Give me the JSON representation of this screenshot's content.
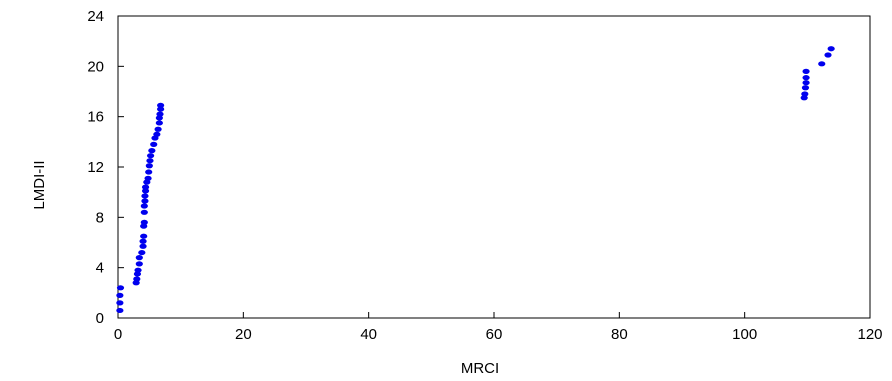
{
  "chart_data": {
    "type": "scatter",
    "title": "",
    "xlabel": "MRCI",
    "ylabel": "LMDI-II",
    "xlim": [
      0,
      120
    ],
    "ylim": [
      0,
      24
    ],
    "x_ticks": [
      0,
      20,
      40,
      60,
      80,
      100,
      120
    ],
    "y_ticks": [
      0,
      4,
      8,
      12,
      16,
      20,
      24
    ],
    "grid": false,
    "marker_color": "#0000ee",
    "points": [
      {
        "x": 0.3,
        "y": 0.6
      },
      {
        "x": 0.3,
        "y": 1.2
      },
      {
        "x": 0.3,
        "y": 1.8
      },
      {
        "x": 0.4,
        "y": 2.4
      },
      {
        "x": 2.9,
        "y": 2.8
      },
      {
        "x": 3.0,
        "y": 3.1
      },
      {
        "x": 3.1,
        "y": 3.5
      },
      {
        "x": 3.2,
        "y": 3.8
      },
      {
        "x": 3.4,
        "y": 4.3
      },
      {
        "x": 3.4,
        "y": 4.8
      },
      {
        "x": 3.8,
        "y": 5.2
      },
      {
        "x": 4.0,
        "y": 5.7
      },
      {
        "x": 4.0,
        "y": 6.1
      },
      {
        "x": 4.1,
        "y": 6.5
      },
      {
        "x": 4.1,
        "y": 7.3
      },
      {
        "x": 4.2,
        "y": 7.6
      },
      {
        "x": 4.2,
        "y": 8.4
      },
      {
        "x": 4.2,
        "y": 8.9
      },
      {
        "x": 4.3,
        "y": 9.3
      },
      {
        "x": 4.3,
        "y": 9.7
      },
      {
        "x": 4.4,
        "y": 10.1
      },
      {
        "x": 4.4,
        "y": 10.4
      },
      {
        "x": 4.6,
        "y": 10.8
      },
      {
        "x": 4.8,
        "y": 11.1
      },
      {
        "x": 4.9,
        "y": 11.6
      },
      {
        "x": 5.0,
        "y": 12.1
      },
      {
        "x": 5.1,
        "y": 12.5
      },
      {
        "x": 5.2,
        "y": 12.9
      },
      {
        "x": 5.4,
        "y": 13.3
      },
      {
        "x": 5.7,
        "y": 13.8
      },
      {
        "x": 5.9,
        "y": 14.3
      },
      {
        "x": 6.2,
        "y": 14.6
      },
      {
        "x": 6.4,
        "y": 15.0
      },
      {
        "x": 6.6,
        "y": 15.5
      },
      {
        "x": 6.6,
        "y": 15.9
      },
      {
        "x": 6.7,
        "y": 16.2
      },
      {
        "x": 6.8,
        "y": 16.6
      },
      {
        "x": 6.8,
        "y": 16.9
      },
      {
        "x": 109.5,
        "y": 17.5
      },
      {
        "x": 109.6,
        "y": 17.8
      },
      {
        "x": 109.7,
        "y": 18.3
      },
      {
        "x": 109.8,
        "y": 18.7
      },
      {
        "x": 109.8,
        "y": 19.1
      },
      {
        "x": 109.8,
        "y": 19.6
      },
      {
        "x": 112.3,
        "y": 20.2
      },
      {
        "x": 113.3,
        "y": 20.9
      },
      {
        "x": 113.8,
        "y": 21.4
      }
    ]
  }
}
